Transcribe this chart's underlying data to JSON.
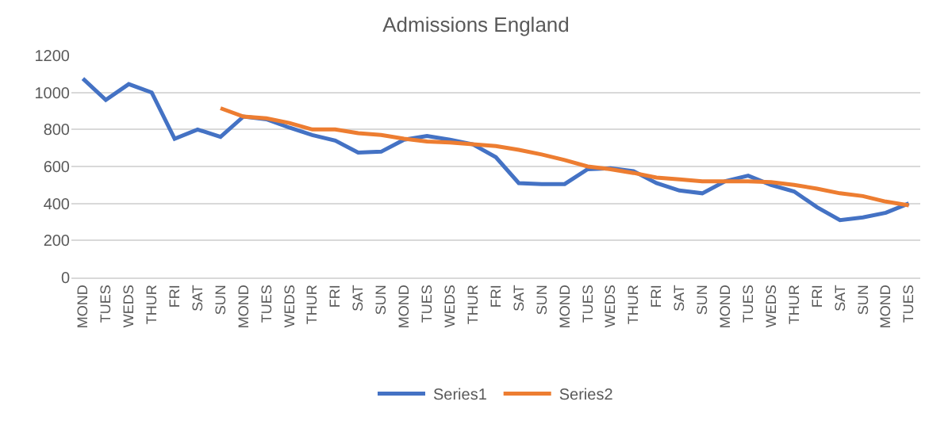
{
  "chart_data": {
    "type": "line",
    "title": "Admissions England",
    "categories": [
      "MOND",
      "TUES",
      "WEDS",
      "THUR",
      "FRI",
      "SAT",
      "SUN",
      "MOND",
      "TUES",
      "WEDS",
      "THUR",
      "FRI",
      "SAT",
      "SUN",
      "MOND",
      "TUES",
      "WEDS",
      "THUR",
      "FRI",
      "SAT",
      "SUN",
      "MOND",
      "TUES",
      "WEDS",
      "THUR",
      "FRI",
      "SAT",
      "SUN",
      "MOND",
      "TUES",
      "WEDS",
      "THUR",
      "FRI",
      "SAT",
      "SUN",
      "MOND",
      "TUES"
    ],
    "series": [
      {
        "name": "Series1",
        "color": "#4472c4",
        "values": [
          1075,
          960,
          1045,
          1000,
          750,
          800,
          760,
          870,
          855,
          810,
          770,
          740,
          675,
          680,
          745,
          765,
          745,
          720,
          650,
          510,
          505,
          505,
          585,
          590,
          575,
          510,
          470,
          455,
          520,
          550,
          500,
          465,
          380,
          310,
          325,
          350,
          400
        ]
      },
      {
        "name": "Series2",
        "color": "#ed7d31",
        "values": [
          null,
          null,
          null,
          null,
          null,
          null,
          915,
          870,
          860,
          835,
          800,
          800,
          780,
          770,
          750,
          735,
          730,
          720,
          710,
          690,
          665,
          635,
          600,
          585,
          565,
          540,
          530,
          520,
          520,
          520,
          515,
          500,
          480,
          455,
          440,
          410,
          390
        ]
      }
    ],
    "ylim": [
      0,
      1200
    ],
    "yticks": [
      0,
      200,
      400,
      600,
      800,
      1000,
      1200
    ],
    "grid": "y",
    "legend": "bottom",
    "line_style": "solid",
    "marker": "none"
  }
}
